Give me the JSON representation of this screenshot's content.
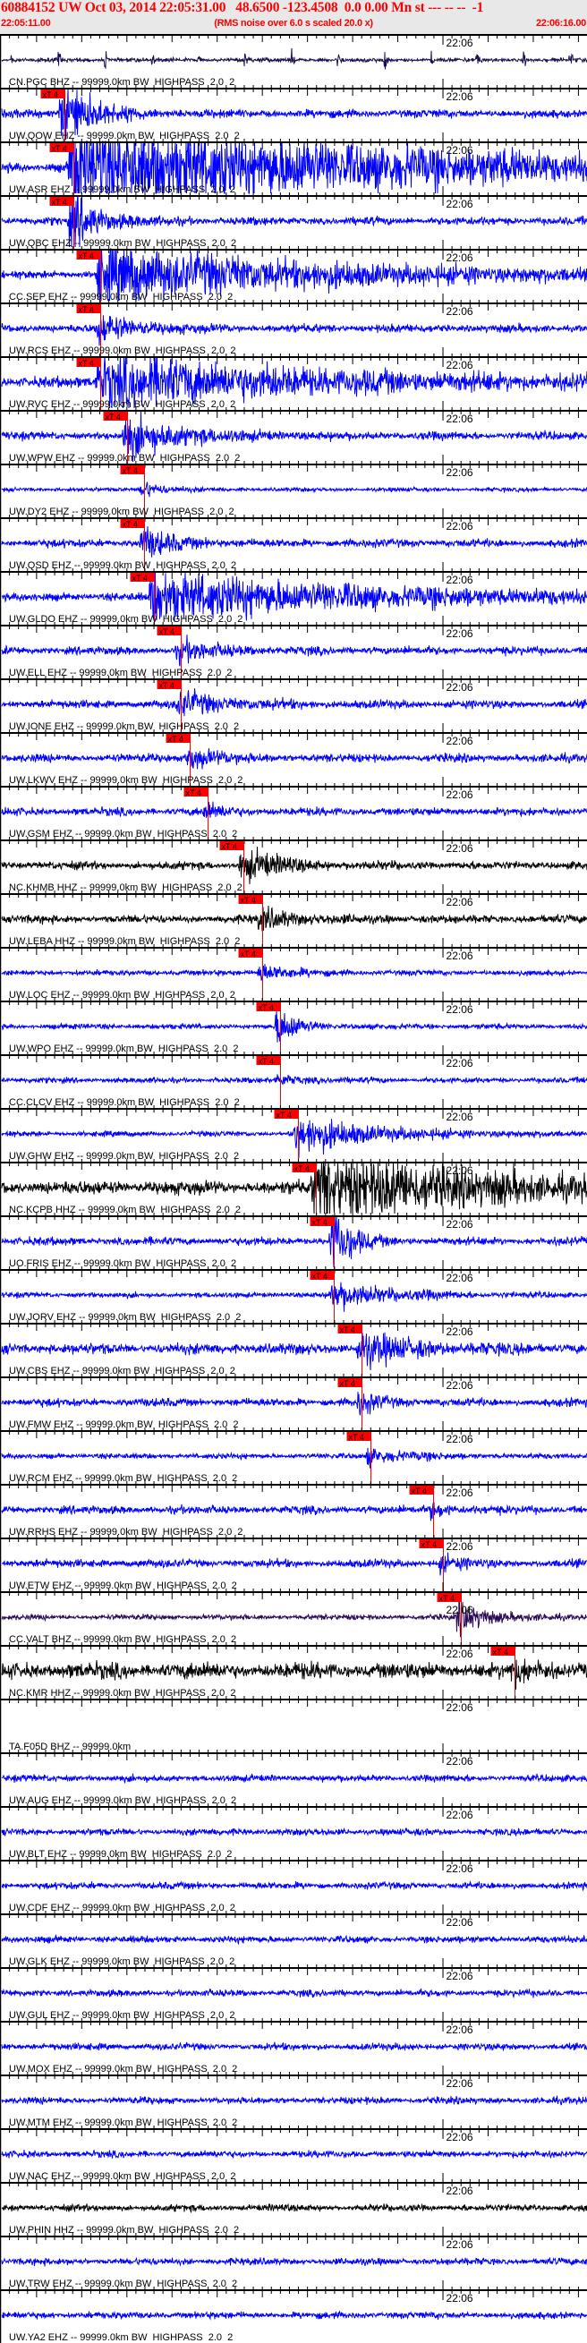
{
  "header": {
    "event_line": "60884152 UW Oct 03, 2014 22:05:31.00   48.6500 -123.4508  0.0 0.00 Mn st --- -- --  -1",
    "start_time": "22:05:11.00",
    "rms_note": "(RMS noise over 6.0 s scaled 20.0 x)",
    "end_time": "22:06:16.00"
  },
  "chart_data": {
    "type": "line",
    "x_range": [
      "22:05:11.00",
      "22:06:16.00"
    ],
    "x_tick_label": "22:06",
    "x_major_tick_seconds": 5,
    "x_minor_tick_seconds": 1,
    "grid": false,
    "colors": {
      "header_text": "#ff0000",
      "header_bg": "#e8e8e8",
      "pick": "#ff0000"
    },
    "series": [
      {
        "label": "CN.PGC BHZ -- 99999.0km BW  HIGHPASS  2.0  2",
        "color": "#1e0f50"
      },
      {
        "label": "UW.QOW EHZ -- 99999.0km BW  HIGHPASS  2.0  2",
        "color": "#0000ff",
        "pick": {
          "label": "xT 4",
          "time": "22:05:18.1"
        }
      },
      {
        "label": "UW.ASR EHZ -- 99999.0km BW  HIGHPASS  2.0  2",
        "color": "#0000ff",
        "pick": {
          "label": "xT 4",
          "time": "22:05:19.1"
        }
      },
      {
        "label": "UW.QBC EHZ -- 99999.0km BW  HIGHPASS  2.0  2",
        "color": "#0000ff",
        "pick": {
          "label": "xT 4",
          "time": "22:05:19.1"
        }
      },
      {
        "label": "CC.SEP EHZ -- 99999.0km BW  HIGHPASS  2.0  2",
        "color": "#0000ff",
        "pick": {
          "label": "xT 4",
          "time": "22:05:22.1"
        }
      },
      {
        "label": "UW.RCS EHZ -- 99999.0km BW  HIGHPASS  2.0  2",
        "color": "#0000ff",
        "pick": {
          "label": "xT 4",
          "time": "22:05:22.1"
        }
      },
      {
        "label": "UW.RVC EHZ -- 99999.0km BW  HIGHPASS  2.0  2",
        "color": "#0000ff",
        "pick": {
          "label": "xT 4",
          "time": "22:05:22.1"
        }
      },
      {
        "label": "UW.WPW EHZ -- 99999.0km BW  HIGHPASS  2.0  2",
        "color": "#0000ff",
        "pick": {
          "label": "xT 4",
          "time": "22:05:25.1"
        }
      },
      {
        "label": "UW.DY2 EHZ -- 99999.0km BW  HIGHPASS  2.0  2",
        "color": "#0000ff",
        "pick": {
          "label": "xT 4",
          "time": "22:05:27.0"
        }
      },
      {
        "label": "UW.QSD EHZ -- 99999.0km BW  HIGHPASS  2.0  2",
        "color": "#0000ff",
        "pick": {
          "label": "xT 4",
          "time": "22:05:27.0"
        }
      },
      {
        "label": "UW.GLDO EHZ -- 99999.0km BW  HIGHPASS  2.0  2",
        "color": "#0000ff",
        "pick": {
          "label": "xT 4",
          "time": "22:05:28.0"
        }
      },
      {
        "label": "UW.ELL EHZ -- 99999.0km BW  HIGHPASS  2.0  2",
        "color": "#0000ff",
        "pick": {
          "label": "xT 4",
          "time": "22:05:31.0"
        }
      },
      {
        "label": "UW.IONE EHZ -- 99999.0km BW  HIGHPASS  2.0  2",
        "color": "#0000ff",
        "pick": {
          "label": "xT 4",
          "time": "22:05:31.0"
        }
      },
      {
        "label": "UW.LKWV EHZ -- 99999.0km BW  HIGHPASS  2.0  2",
        "color": "#0000ff",
        "pick": {
          "label": "xT 4",
          "time": "22:05:32.0"
        }
      },
      {
        "label": "UW.GSM EHZ -- 99999.0km BW  HIGHPASS  2.0  2",
        "color": "#0000ff",
        "pick": {
          "label": "xT 4",
          "time": "22:05:34.0"
        }
      },
      {
        "label": "NC.KHMB HHZ -- 99999.0km BW  HIGHPASS  2.0  2",
        "color": "#000000",
        "pick": {
          "label": "xT 4",
          "time": "22:05:38.0"
        }
      },
      {
        "label": "UW.LEBA HHZ -- 99999.0km BW  HIGHPASS  2.0  2",
        "color": "#000000",
        "pick": {
          "label": "xT 4",
          "time": "22:05:40.0"
        }
      },
      {
        "label": "UW.LOC EHZ -- 99999.0km BW  HIGHPASS  2.0  2",
        "color": "#0000ff",
        "pick": {
          "label": "xT 4",
          "time": "22:05:40.0"
        }
      },
      {
        "label": "UW.WPO EHZ -- 99999.0km BW  HIGHPASS  2.0  2",
        "color": "#0000ff",
        "pick": {
          "label": "xT 4",
          "time": "22:05:42.0"
        }
      },
      {
        "label": "CC.CLCV EHZ -- 99999.0km BW  HIGHPASS  2.0  2",
        "color": "#0000ff",
        "pick": {
          "label": "xT 4",
          "time": "22:05:42.0"
        }
      },
      {
        "label": "UW.GHW EHZ -- 99999.0km BW  HIGHPASS  2.0  2",
        "color": "#0000ff",
        "pick": {
          "label": "xT 4",
          "time": "22:05:44.0"
        }
      },
      {
        "label": "NC.KCPB HHZ -- 99999.0km BW  HIGHPASS  2.0  2",
        "color": "#000000",
        "pick": {
          "label": "xT 4",
          "time": "22:05:46.0"
        }
      },
      {
        "label": "UO.FRIS EHZ -- 99999.0km BW  HIGHPASS  2.0  2",
        "color": "#0000ff",
        "pick": {
          "label": "xT 4",
          "time": "22:05:48.0"
        }
      },
      {
        "label": "UW.JORV EHZ -- 99999.0km BW  HIGHPASS  2.0  2",
        "color": "#0000ff",
        "pick": {
          "label": "xT 4",
          "time": "22:05:48.0"
        }
      },
      {
        "label": "UW.CBS EHZ -- 99999.0km BW  HIGHPASS  2.0  2",
        "color": "#0000ff",
        "pick": {
          "label": "xT 4",
          "time": "22:05:51.0"
        }
      },
      {
        "label": "UW.FMW EHZ -- 99999.0km BW  HIGHPASS  2.0  2",
        "color": "#0000ff",
        "pick": {
          "label": "xT 4",
          "time": "22:05:51.0"
        }
      },
      {
        "label": "UW.RCM EHZ -- 99999.0km BW  HIGHPASS  2.0  2",
        "color": "#0000ff",
        "pick": {
          "label": "xT 4",
          "time": "22:05:52.0"
        }
      },
      {
        "label": "UW.RRHS EHZ -- 99999.0km BW  HIGHPASS  2.0  2",
        "color": "#0000ff",
        "pick": {
          "label": "xT 4",
          "time": "22:05:59.0"
        }
      },
      {
        "label": "UW.ETW EHZ -- 99999.0km BW  HIGHPASS  2.0  2",
        "color": "#0000ff",
        "pick": {
          "label": "xT 4",
          "time": "22:06:00.0"
        }
      },
      {
        "label": "CC.VALT BHZ -- 99999.0km BW  HIGHPASS  2.0  2",
        "color": "#2a0a55",
        "pick": {
          "label": "xT 4",
          "time": "22:06:02.0"
        }
      },
      {
        "label": "NC.KMR HHZ -- 99999.0km BW  HIGHPASS  2.0  2",
        "color": "#000000",
        "pick": {
          "label": "xT 4",
          "time": "22:06:08.0"
        }
      },
      {
        "label": "TA.F05D BHZ -- 99999.0km",
        "color": "#0000ff",
        "empty": true
      },
      {
        "label": "UW.AUG EHZ -- 99999.0km BW  HIGHPASS  2.0  2",
        "color": "#0000ff"
      },
      {
        "label": "UW.BLT EHZ -- 99999.0km BW  HIGHPASS  2.0  2",
        "color": "#0000ff"
      },
      {
        "label": "UW.CDF EHZ -- 99999.0km BW  HIGHPASS  2.0  2",
        "color": "#0000ff"
      },
      {
        "label": "UW.GLK EHZ -- 99999.0km BW  HIGHPASS  2.0  2",
        "color": "#0000ff"
      },
      {
        "label": "UW.GUL EHZ -- 99999.0km BW  HIGHPASS  2.0  2",
        "color": "#0000ff"
      },
      {
        "label": "UW.MOX EHZ -- 99999.0km BW  HIGHPASS  2.0  2",
        "color": "#0000ff"
      },
      {
        "label": "UW.MTM EHZ -- 99999.0km BW  HIGHPASS  2.0  2",
        "color": "#0000ff"
      },
      {
        "label": "UW.NAC EHZ -- 99999.0km BW  HIGHPASS  2.0  2",
        "color": "#0000ff"
      },
      {
        "label": "UW.PHIN HHZ -- 99999.0km BW  HIGHPASS  2.0  2",
        "color": "#000000"
      },
      {
        "label": "UW.TRW EHZ -- 99999.0km BW  HIGHPASS  2.0  2",
        "color": "#0000ff"
      },
      {
        "label": "UW.YA2 EHZ -- 99999.0km BW  HIGHPASS  2.0  2",
        "color": "#0000ff"
      }
    ]
  }
}
